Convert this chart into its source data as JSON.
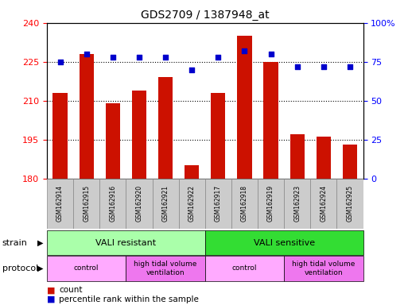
{
  "title": "GDS2709 / 1387948_at",
  "samples": [
    "GSM162914",
    "GSM162915",
    "GSM162916",
    "GSM162920",
    "GSM162921",
    "GSM162922",
    "GSM162917",
    "GSM162918",
    "GSM162919",
    "GSM162923",
    "GSM162924",
    "GSM162925"
  ],
  "counts": [
    213,
    228,
    209,
    214,
    219,
    185,
    213,
    235,
    225,
    197,
    196,
    193
  ],
  "percentiles": [
    75,
    80,
    78,
    78,
    78,
    70,
    78,
    82,
    80,
    72,
    72,
    72
  ],
  "ylim_left": [
    180,
    240
  ],
  "ylim_right": [
    0,
    100
  ],
  "yticks_left": [
    180,
    195,
    210,
    225,
    240
  ],
  "yticks_right": [
    0,
    25,
    50,
    75,
    100
  ],
  "bar_color": "#cc1100",
  "dot_color": "#0000cc",
  "strain_groups": [
    {
      "label": "VALI resistant",
      "start": 0,
      "end": 6,
      "color": "#aaffaa"
    },
    {
      "label": "VALI sensitive",
      "start": 6,
      "end": 12,
      "color": "#33dd33"
    }
  ],
  "protocol_groups": [
    {
      "label": "control",
      "start": 0,
      "end": 3,
      "color": "#ffaaff"
    },
    {
      "label": "high tidal volume\nventilation",
      "start": 3,
      "end": 6,
      "color": "#ee77ee"
    },
    {
      "label": "control",
      "start": 6,
      "end": 9,
      "color": "#ffaaff"
    },
    {
      "label": "high tidal volume\nventilation",
      "start": 9,
      "end": 12,
      "color": "#ee77ee"
    }
  ],
  "background_color": "#ffffff",
  "label_bg_color": "#cccccc",
  "grid_yticks": [
    195,
    210,
    225
  ]
}
